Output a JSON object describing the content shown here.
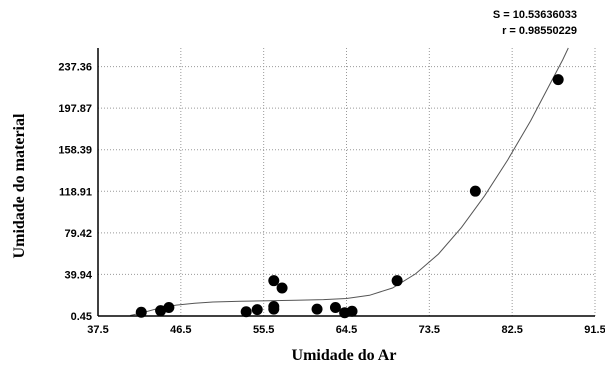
{
  "chart_data": {
    "type": "scatter",
    "title": "",
    "xlabel": "Umidade do Ar",
    "ylabel": "Umidade do material",
    "xlim": [
      37.5,
      91.5
    ],
    "ylim": [
      0.45,
      255
    ],
    "x_ticks": [
      "37.5",
      "46.5",
      "55.5",
      "64.5",
      "73.5",
      "82.5",
      "91.5"
    ],
    "y_ticks": [
      "0.45",
      "39.94",
      "79.42",
      "118.91",
      "158.39",
      "197.87",
      "237.36"
    ],
    "x_tick_values": [
      37.5,
      46.5,
      55.5,
      64.5,
      73.5,
      82.5,
      91.5
    ],
    "y_tick_values": [
      0.45,
      39.94,
      79.42,
      118.91,
      158.39,
      197.87,
      237.36
    ],
    "grid": true,
    "stats": {
      "s_label": "S = 10.53636033",
      "r_label": "r = 0.98550229"
    },
    "points": [
      {
        "x": 42.2,
        "y": 4.0
      },
      {
        "x": 44.3,
        "y": 5.5
      },
      {
        "x": 45.2,
        "y": 8.5
      },
      {
        "x": 53.6,
        "y": 4.5
      },
      {
        "x": 54.8,
        "y": 6.5
      },
      {
        "x": 56.6,
        "y": 9.5
      },
      {
        "x": 56.6,
        "y": 7.0
      },
      {
        "x": 56.6,
        "y": 34.0
      },
      {
        "x": 57.5,
        "y": 27.0
      },
      {
        "x": 61.3,
        "y": 7.0
      },
      {
        "x": 63.3,
        "y": 8.5
      },
      {
        "x": 64.3,
        "y": 3.5
      },
      {
        "x": 65.1,
        "y": 5.0
      },
      {
        "x": 70.0,
        "y": 34.0
      },
      {
        "x": 78.5,
        "y": 119.0
      },
      {
        "x": 87.5,
        "y": 225.0
      }
    ],
    "fit_curve": [
      {
        "x": 41.0,
        "y": 0.9
      },
      {
        "x": 42.5,
        "y": 4.0
      },
      {
        "x": 44.0,
        "y": 7.6
      },
      {
        "x": 46.0,
        "y": 10.8
      },
      {
        "x": 48.0,
        "y": 12.6
      },
      {
        "x": 50.0,
        "y": 13.7
      },
      {
        "x": 53.0,
        "y": 14.5
      },
      {
        "x": 56.0,
        "y": 15.0
      },
      {
        "x": 59.0,
        "y": 15.4
      },
      {
        "x": 62.0,
        "y": 16.0
      },
      {
        "x": 64.5,
        "y": 17.1
      },
      {
        "x": 67.0,
        "y": 20.1
      },
      {
        "x": 69.5,
        "y": 27.0
      },
      {
        "x": 72.0,
        "y": 40.4
      },
      {
        "x": 74.5,
        "y": 59.3
      },
      {
        "x": 77.0,
        "y": 84.6
      },
      {
        "x": 79.5,
        "y": 114.6
      },
      {
        "x": 82.0,
        "y": 148.5
      },
      {
        "x": 84.5,
        "y": 185.8
      },
      {
        "x": 86.5,
        "y": 219.0
      },
      {
        "x": 88.0,
        "y": 244.0
      },
      {
        "x": 88.6,
        "y": 255.0
      }
    ]
  }
}
